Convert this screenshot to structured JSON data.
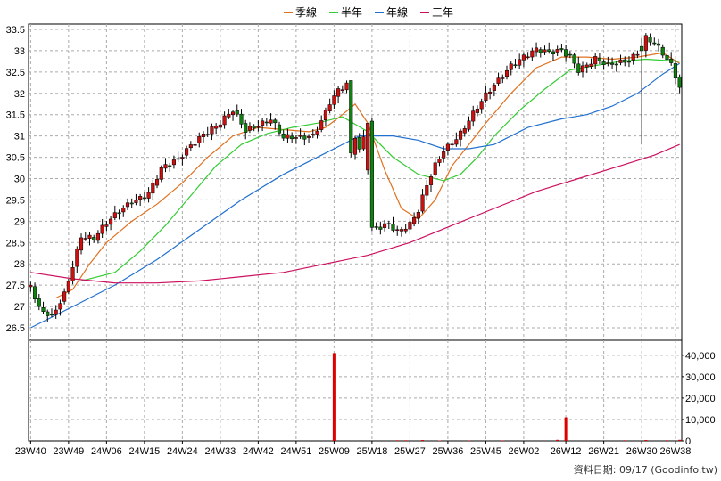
{
  "chart_data": {
    "type": "candlestick",
    "legend": [
      {
        "label": "季線",
        "color": "#e07020"
      },
      {
        "label": "半年",
        "color": "#33cc33"
      },
      {
        "label": "年線",
        "color": "#2070d0"
      },
      {
        "label": "三年",
        "color": "#cc1060"
      }
    ],
    "price_axis": {
      "ylim": [
        26.5,
        33.5
      ],
      "ticks": [
        26.5,
        27,
        27.5,
        28,
        28.5,
        29,
        29.5,
        30,
        30.5,
        31,
        31.5,
        32,
        32.5,
        33,
        33.5
      ]
    },
    "volume_axis": {
      "ylim": [
        0,
        47000
      ],
      "ticks": [
        0,
        10000,
        20000,
        30000,
        40000
      ],
      "tick_labels": [
        "0",
        "10,000",
        "20,000",
        "30,000",
        "40,000"
      ]
    },
    "x_labels": [
      "23W40",
      "23W49",
      "24W06",
      "24W15",
      "24W24",
      "24W33",
      "24W42",
      "24W51",
      "25W09",
      "25W18",
      "25W27",
      "25W36",
      "25W45",
      "26W02",
      "26W12",
      "26W21",
      "26W30",
      "26W38"
    ],
    "x_label_weeks": [
      0,
      9,
      18,
      27,
      36,
      45,
      54,
      63,
      72,
      81,
      90,
      99,
      108,
      117,
      127,
      136,
      145,
      153
    ],
    "week_count": 155,
    "price_keypoints": [
      [
        0,
        27.5
      ],
      [
        2,
        26.9
      ],
      [
        5,
        26.7
      ],
      [
        8,
        27.3
      ],
      [
        10,
        28.0
      ],
      [
        12,
        28.7
      ],
      [
        15,
        28.6
      ],
      [
        18,
        28.9
      ],
      [
        20,
        29.1
      ],
      [
        24,
        29.5
      ],
      [
        28,
        29.7
      ],
      [
        31,
        30.2
      ],
      [
        35,
        30.4
      ],
      [
        38,
        30.8
      ],
      [
        41,
        31.1
      ],
      [
        45,
        31.3
      ],
      [
        48,
        31.55
      ],
      [
        51,
        31.1
      ],
      [
        54,
        31.3
      ],
      [
        57,
        31.45
      ],
      [
        60,
        30.95
      ],
      [
        64,
        30.9
      ],
      [
        67,
        31.0
      ],
      [
        69,
        31.4
      ],
      [
        71,
        31.85
      ],
      [
        73,
        32.1
      ],
      [
        75,
        32.2
      ],
      [
        76,
        31.3
      ],
      [
        78,
        30.6
      ],
      [
        79,
        30.9
      ],
      [
        80,
        31.1
      ],
      [
        81,
        28.8
      ],
      [
        83,
        28.9
      ],
      [
        85,
        29.0
      ],
      [
        87,
        28.8
      ],
      [
        90,
        28.9
      ],
      [
        92,
        29.2
      ],
      [
        94,
        29.8
      ],
      [
        96,
        30.3
      ],
      [
        98,
        30.7
      ],
      [
        100,
        30.9
      ],
      [
        102,
        31.1
      ],
      [
        105,
        31.5
      ],
      [
        108,
        31.9
      ],
      [
        111,
        32.3
      ],
      [
        114,
        32.7
      ],
      [
        117,
        32.9
      ],
      [
        120,
        33.0
      ],
      [
        123,
        32.9
      ],
      [
        126,
        33.0
      ],
      [
        128,
        32.9
      ],
      [
        130,
        32.6
      ],
      [
        134,
        32.8
      ],
      [
        137,
        32.6
      ],
      [
        140,
        32.7
      ],
      [
        142,
        32.8
      ],
      [
        144,
        33.0
      ],
      [
        146,
        33.35
      ],
      [
        148,
        33.2
      ],
      [
        150,
        32.9
      ],
      [
        152,
        32.6
      ],
      [
        154,
        32.1
      ]
    ],
    "special_candles": [
      {
        "week": 76,
        "open": 32.3,
        "close": 30.6,
        "high": 32.3,
        "low": 30.5
      },
      {
        "week": 80,
        "open": 30.2,
        "close": 31.3,
        "high": 31.3,
        "low": 30.1
      },
      {
        "week": 145,
        "open": 33.1,
        "close": 33.0,
        "high": 33.3,
        "low": 30.8
      }
    ],
    "ma_lines": [
      {
        "name": "季線",
        "color": "#e07020",
        "points": [
          [
            6,
            27.2
          ],
          [
            10,
            27.4
          ],
          [
            14,
            28.0
          ],
          [
            18,
            28.5
          ],
          [
            24,
            29.0
          ],
          [
            30,
            29.4
          ],
          [
            36,
            29.9
          ],
          [
            42,
            30.5
          ],
          [
            48,
            31.0
          ],
          [
            54,
            31.2
          ],
          [
            60,
            31.15
          ],
          [
            66,
            31.1
          ],
          [
            70,
            31.2
          ],
          [
            74,
            31.5
          ],
          [
            77,
            31.75
          ],
          [
            80,
            31.3
          ],
          [
            84,
            30.2
          ],
          [
            88,
            29.3
          ],
          [
            92,
            29.05
          ],
          [
            96,
            29.5
          ],
          [
            100,
            30.3
          ],
          [
            104,
            30.8
          ],
          [
            108,
            31.3
          ],
          [
            114,
            32.0
          ],
          [
            120,
            32.6
          ],
          [
            126,
            32.85
          ],
          [
            132,
            32.85
          ],
          [
            138,
            32.8
          ],
          [
            144,
            32.85
          ],
          [
            150,
            32.95
          ],
          [
            154,
            32.7
          ]
        ]
      },
      {
        "name": "半年",
        "color": "#33cc33",
        "points": [
          [
            12,
            27.6
          ],
          [
            20,
            27.8
          ],
          [
            26,
            28.3
          ],
          [
            32,
            28.9
          ],
          [
            38,
            29.6
          ],
          [
            44,
            30.3
          ],
          [
            50,
            30.8
          ],
          [
            56,
            31.05
          ],
          [
            62,
            31.2
          ],
          [
            68,
            31.3
          ],
          [
            74,
            31.45
          ],
          [
            80,
            31.1
          ],
          [
            86,
            30.5
          ],
          [
            92,
            30.1
          ],
          [
            98,
            29.95
          ],
          [
            102,
            30.1
          ],
          [
            106,
            30.5
          ],
          [
            110,
            31.0
          ],
          [
            116,
            31.6
          ],
          [
            122,
            32.1
          ],
          [
            128,
            32.55
          ],
          [
            134,
            32.65
          ],
          [
            140,
            32.75
          ],
          [
            146,
            32.8
          ],
          [
            154,
            32.75
          ]
        ]
      },
      {
        "name": "年線",
        "color": "#2070d0",
        "points": [
          [
            0,
            26.5
          ],
          [
            10,
            27.0
          ],
          [
            20,
            27.5
          ],
          [
            30,
            28.1
          ],
          [
            40,
            28.8
          ],
          [
            50,
            29.5
          ],
          [
            60,
            30.1
          ],
          [
            70,
            30.6
          ],
          [
            78,
            31.0
          ],
          [
            86,
            31.0
          ],
          [
            92,
            30.9
          ],
          [
            98,
            30.7
          ],
          [
            104,
            30.7
          ],
          [
            110,
            30.8
          ],
          [
            118,
            31.2
          ],
          [
            126,
            31.4
          ],
          [
            132,
            31.5
          ],
          [
            138,
            31.7
          ],
          [
            144,
            32.0
          ],
          [
            150,
            32.45
          ],
          [
            154,
            32.7
          ]
        ]
      },
      {
        "name": "三年",
        "color": "#cc1060",
        "points": [
          [
            0,
            27.8
          ],
          [
            10,
            27.65
          ],
          [
            20,
            27.55
          ],
          [
            30,
            27.55
          ],
          [
            40,
            27.6
          ],
          [
            50,
            27.7
          ],
          [
            60,
            27.8
          ],
          [
            70,
            28.0
          ],
          [
            80,
            28.2
          ],
          [
            90,
            28.5
          ],
          [
            100,
            28.9
          ],
          [
            110,
            29.3
          ],
          [
            120,
            29.7
          ],
          [
            130,
            30.0
          ],
          [
            140,
            30.3
          ],
          [
            148,
            30.55
          ],
          [
            154,
            30.8
          ]
        ]
      }
    ],
    "volume_spikes": [
      {
        "week": 72,
        "value": 41000
      },
      {
        "week": 127,
        "value": 11000
      }
    ],
    "volume_base": [
      {
        "week": 87,
        "value": 300
      },
      {
        "week": 89,
        "value": 300
      },
      {
        "week": 93,
        "value": 400
      },
      {
        "week": 97,
        "value": 200
      },
      {
        "week": 104,
        "value": 250
      },
      {
        "week": 112,
        "value": 250
      },
      {
        "week": 125,
        "value": 500
      },
      {
        "week": 141,
        "value": 300
      },
      {
        "week": 146,
        "value": 400
      },
      {
        "week": 151,
        "value": 300
      },
      {
        "week": 154,
        "value": 500
      }
    ],
    "colors": {
      "up": "#cc1010",
      "down": "#108010",
      "grid": "#aaaaaa"
    },
    "footer": "資料日期: 09/17  (Goodinfo.tw)",
    "grid": true
  }
}
